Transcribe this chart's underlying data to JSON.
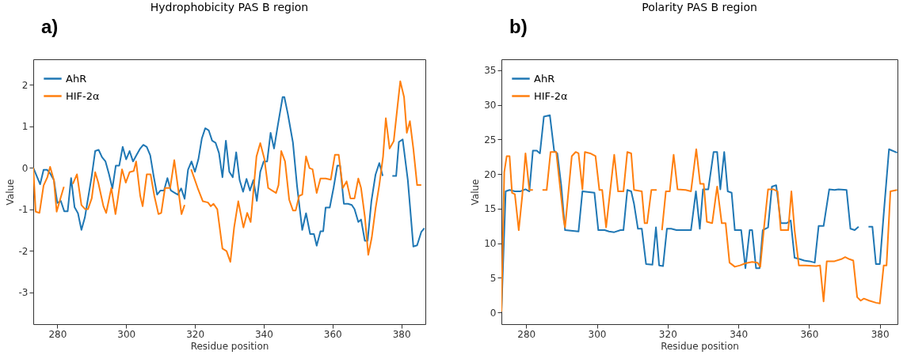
{
  "chart_data": [
    {
      "type": "line",
      "title": "Hydrophobicity PAS B region",
      "xlabel": "Residue position",
      "ylabel": "Value",
      "annotations": [
        "a)"
      ],
      "xlim": [
        273,
        387
      ],
      "ylim": [
        -3.77,
        2.61
      ],
      "xticks": [
        280,
        300,
        320,
        340,
        360,
        380
      ],
      "yticks": [
        -3,
        -2,
        -1,
        0,
        1,
        2
      ],
      "grid": false,
      "legend": "top left",
      "line_style": "solid",
      "series": [
        {
          "name": "AhR",
          "color": "#1f77b4",
          "x": [
            273,
            274,
            275,
            276,
            277,
            278,
            279,
            280,
            281,
            282,
            283,
            284,
            285,
            286,
            287,
            288,
            289,
            290,
            291,
            292,
            293,
            294,
            295,
            296,
            297,
            298,
            299,
            300,
            301,
            302,
            303,
            304,
            305,
            306,
            307,
            308,
            309,
            310,
            311,
            312,
            313,
            314,
            315,
            316,
            317,
            318,
            319,
            320,
            321,
            322,
            323,
            324,
            325,
            326,
            327,
            328,
            329,
            330,
            331,
            332,
            333,
            334,
            335,
            336,
            337,
            338,
            339,
            340,
            341,
            342,
            343,
            344,
            345.5,
            346,
            347,
            348.5,
            349.7,
            351.2,
            352.3,
            353.5,
            354.6,
            355.4,
            356.5,
            357.3,
            358,
            359.2,
            360.3,
            361.4,
            362.2,
            363.3,
            364.5,
            365.6,
            366.4,
            367.5,
            368.3,
            369.4,
            370.2,
            371.3,
            372.5,
            373.6,
            374.6,
            376,
            377.4,
            378.5,
            379.3,
            380.4,
            381.9,
            383.5,
            384.6,
            385.8,
            386.7
          ],
          "values": [
            0,
            -0.2,
            -0.4,
            -0.05,
            -0.05,
            -0.15,
            -0.3,
            -0.85,
            -0.8,
            -1.05,
            -1.05,
            -0.25,
            -0.95,
            -1.1,
            -1.5,
            -1.2,
            -0.7,
            -0.2,
            0.4,
            0.43,
            0.25,
            0.15,
            -0.15,
            -0.5,
            0.05,
            0.05,
            0.5,
            0.2,
            0.4,
            0.15,
            0.3,
            0.45,
            0.55,
            0.5,
            0.3,
            -0.2,
            -0.65,
            -0.55,
            -0.55,
            -0.25,
            -0.55,
            -0.6,
            -0.65,
            -0.5,
            -0.75,
            -0.05,
            0.15,
            -0.1,
            0.2,
            0.7,
            0.95,
            0.9,
            0.65,
            0.6,
            0.35,
            -0.23,
            0.65,
            -0.1,
            -0.23,
            0.37,
            -0.3,
            -0.58,
            -0.27,
            -0.55,
            -0.3,
            -0.8,
            -0.1,
            0.15,
            0.15,
            0.84,
            0.46,
            0.97,
            1.7,
            1.7,
            1.3,
            0.6,
            -0.45,
            -1.5,
            -1.1,
            -1.6,
            -1.6,
            -1.88,
            -1.53,
            -1.53,
            -0.96,
            -0.96,
            -0.49,
            0.05,
            0.05,
            -0.87,
            -0.87,
            -0.9,
            -1,
            -1.31,
            -1.25,
            -1.76,
            -1.76,
            -0.81,
            -0.17,
            0.11,
            -0.2,
            null,
            -0.2,
            -0.2,
            0.62,
            0.68,
            -0.3,
            -1.9,
            -1.87,
            -1.55,
            -1.46
          ]
        },
        {
          "name": "HIF-2α",
          "color": "#ff7f0e",
          "x": [
            273,
            273.7,
            274.8,
            276,
            277.1,
            277.9,
            279,
            279.8,
            280.9,
            281.9,
            283.2,
            284.5,
            285.7,
            287,
            288.1,
            288.9,
            290,
            291,
            291.9,
            293.4,
            294.2,
            295.7,
            296.9,
            297.6,
            298.8,
            299.9,
            301,
            302.2,
            302.9,
            304.1,
            304.8,
            306,
            307.1,
            308.2,
            309.4,
            310.2,
            311.3,
            312.8,
            314,
            315.1,
            316.1,
            317,
            318,
            318.9,
            320.8,
            322.3,
            323.8,
            324.6,
            325.4,
            326.5,
            328,
            329.2,
            330.3,
            331.4,
            332.6,
            334.1,
            335.2,
            336.2,
            337.9,
            339,
            340.2,
            341.3,
            342.4,
            343.6,
            344.3,
            345.1,
            346.2,
            347.4,
            348.5,
            349.3,
            350.3,
            351.2,
            352.3,
            353.3,
            354.2,
            355.4,
            356.5,
            358,
            359.5,
            360.7,
            361.8,
            363,
            364.1,
            365.2,
            366.4,
            367.5,
            368.3,
            369.4,
            370.4,
            371.4,
            372.5,
            373.6,
            374.7,
            375.5,
            376.6,
            377.8,
            378.9,
            379.7,
            380.8,
            381.6,
            382.5,
            383.5,
            384.6,
            385.8
          ],
          "values": [
            0,
            -1.06,
            -1.09,
            -0.43,
            -0.23,
            0.02,
            -0.3,
            -1.06,
            -0.74,
            -0.46,
            null,
            -0.39,
            -0.16,
            -0.9,
            -1.0,
            -1.0,
            -0.74,
            -0.11,
            -0.36,
            -0.93,
            -1.09,
            -0.49,
            -1.12,
            -0.74,
            -0.04,
            -0.36,
            -0.11,
            -0.08,
            0.15,
            -0.68,
            -0.93,
            -0.16,
            -0.16,
            -0.68,
            -1.12,
            -1.09,
            -0.49,
            -0.49,
            0.18,
            -0.49,
            -1.12,
            -0.9,
            null,
            -0.04,
            -0.49,
            -0.81,
            -0.84,
            -0.93,
            -0.87,
            -1.0,
            -1.95,
            -2.01,
            -2.27,
            -1.44,
            -0.81,
            -1.44,
            -1.09,
            -1.31,
            0.27,
            0.59,
            0.21,
            -0.49,
            -0.55,
            -0.61,
            -0.42,
            0.4,
            0.15,
            -0.77,
            -1.03,
            -1.03,
            -0.68,
            -0.65,
            0.27,
            -0.01,
            -0.04,
            -0.61,
            -0.26,
            -0.26,
            -0.29,
            0.31,
            0.31,
            -0.49,
            -0.33,
            -0.74,
            -0.74,
            -0.26,
            -0.49,
            -1.18,
            -2.1,
            -1.69,
            -0.99,
            -0.42,
            0.27,
            1.19,
            0.46,
            0.64,
            1.48,
            2.08,
            1.7,
            0.84,
            1.12,
            0.46,
            -0.42,
            -0.42
          ]
        }
      ]
    },
    {
      "type": "line",
      "title": "Polarity PAS B region",
      "xlabel": "Residue position",
      "ylabel": "Value",
      "annotations": [
        "b)"
      ],
      "xlim": [
        273,
        385
      ],
      "ylim": [
        -1.7,
        36.6
      ],
      "xticks": [
        280,
        300,
        320,
        340,
        360,
        380
      ],
      "yticks": [
        0,
        5,
        10,
        15,
        20,
        25,
        30,
        35
      ],
      "grid": false,
      "legend": "top left",
      "line_style": "solid",
      "series": [
        {
          "name": "AhR",
          "color": "#1f77b4",
          "x": [
            273,
            274.2,
            275.3,
            276.8,
            278.3,
            279.8,
            280.9,
            281.9,
            283,
            283.9,
            285,
            286.7,
            287.9,
            288.8,
            289.9,
            291,
            294.8,
            295.9,
            299.3,
            300.4,
            301.5,
            302.2,
            303.4,
            304.9,
            306.7,
            307.5,
            308.6,
            309.7,
            310.5,
            311.6,
            312.7,
            313.9,
            315.7,
            316.7,
            317.6,
            318.7,
            319.8,
            321,
            322.5,
            324,
            325.1,
            326.6,
            328,
            329.1,
            330,
            331.5,
            333,
            334,
            334.9,
            336,
            337,
            338.1,
            339,
            340.8,
            342,
            343.2,
            343.9,
            345,
            346,
            346.9,
            348.4,
            349.5,
            350.7,
            352,
            353.7,
            354.8,
            355.9,
            357.4,
            358.6,
            360.1,
            361.6,
            362.7,
            364.1,
            365.7,
            367.2,
            368.3,
            370.6,
            371.7,
            372.9,
            374,
            375.4,
            376.8,
            377.9,
            378.9,
            380,
            381.1,
            382.6,
            384.9
          ],
          "values": [
            0.1,
            17.5,
            17.7,
            17.5,
            17.5,
            17.8,
            17.5,
            23.4,
            23.4,
            23,
            28.3,
            28.5,
            23.4,
            23,
            18.4,
            11.9,
            11.7,
            17.5,
            17.3,
            11.9,
            11.9,
            11.9,
            11.7,
            11.6,
            11.9,
            11.9,
            17.7,
            17.5,
            15.7,
            12.1,
            12.1,
            7.0,
            6.9,
            12.3,
            6.8,
            6.7,
            12.1,
            12.1,
            11.9,
            11.9,
            11.9,
            11.9,
            17.5,
            12.1,
            17.8,
            17.8,
            23.2,
            23.2,
            17.8,
            23.2,
            17.5,
            17.3,
            11.9,
            11.9,
            6.4,
            11.9,
            11.9,
            6.4,
            6.4,
            11.9,
            12.3,
            18.2,
            18.4,
            12.9,
            12.9,
            13.3,
            7.9,
            7.7,
            7.5,
            7.4,
            7.2,
            12.5,
            12.5,
            17.8,
            17.7,
            17.8,
            17.7,
            12.1,
            11.9,
            12.4,
            null,
            12.4,
            12.4,
            7.0,
            7.0,
            14.2,
            23.6,
            23.1
          ]
        },
        {
          "name": "HIF-2α",
          "color": "#ff7f0e",
          "x": [
            273,
            273.8,
            274.5,
            275.3,
            276,
            276.8,
            277.9,
            278.9,
            279.8,
            280.9,
            281.9,
            283.2,
            284.6,
            285.8,
            286.9,
            288.5,
            290.6,
            291,
            292.9,
            294,
            294.8,
            295.9,
            296.6,
            298.1,
            299.6,
            300.7,
            301.5,
            302.6,
            304.9,
            306,
            307.5,
            308.6,
            309.7,
            310.5,
            312.7,
            313.5,
            314.2,
            315.4,
            316.9,
            317.6,
            318.4,
            319.5,
            320.6,
            321.7,
            322.8,
            325.1,
            326.6,
            328.1,
            329.2,
            330.2,
            331.1,
            332.6,
            334,
            335.3,
            336.4,
            337.5,
            339,
            340.5,
            342,
            343.9,
            345.4,
            346.2,
            347.3,
            348.4,
            349.9,
            351.1,
            352,
            354.1,
            355,
            355.9,
            357.1,
            359,
            362,
            363.1,
            364.1,
            365,
            367.2,
            369.1,
            370.2,
            371.4,
            372.5,
            373.6,
            374.6,
            375.5,
            377,
            378.9,
            380,
            381.1,
            381.9,
            383,
            384.9
          ],
          "values": [
            0.1,
            20.3,
            22.6,
            22.6,
            17.3,
            17.1,
            11.9,
            16.9,
            23,
            17.7,
            17.7,
            null,
            17.7,
            17.7,
            23.2,
            23.2,
            13.4,
            12.3,
            22.6,
            23.2,
            23,
            17.8,
            23.2,
            23,
            22.6,
            17.7,
            17.7,
            12.3,
            22.8,
            17.5,
            17.5,
            23.2,
            23,
            17.7,
            17.5,
            12.9,
            12.9,
            17.7,
            17.7,
            null,
            11.9,
            17.5,
            17.5,
            22.8,
            17.8,
            17.7,
            17.5,
            23.6,
            18.6,
            18.6,
            13.1,
            12.9,
            18.2,
            12.9,
            12.9,
            7.2,
            6.6,
            6.8,
            7.1,
            7.3,
            7.2,
            6.6,
            12.5,
            17.8,
            17.8,
            17.5,
            11.9,
            11.9,
            17.5,
            11.9,
            6.8,
            6.8,
            6.7,
            6.8,
            1.6,
            7.4,
            7.4,
            7.7,
            8.0,
            7.7,
            7.5,
            2.2,
            1.7,
            2.0,
            1.7,
            1.4,
            1.3,
            6.8,
            6.8,
            17.5,
            17.7
          ]
        }
      ]
    }
  ]
}
